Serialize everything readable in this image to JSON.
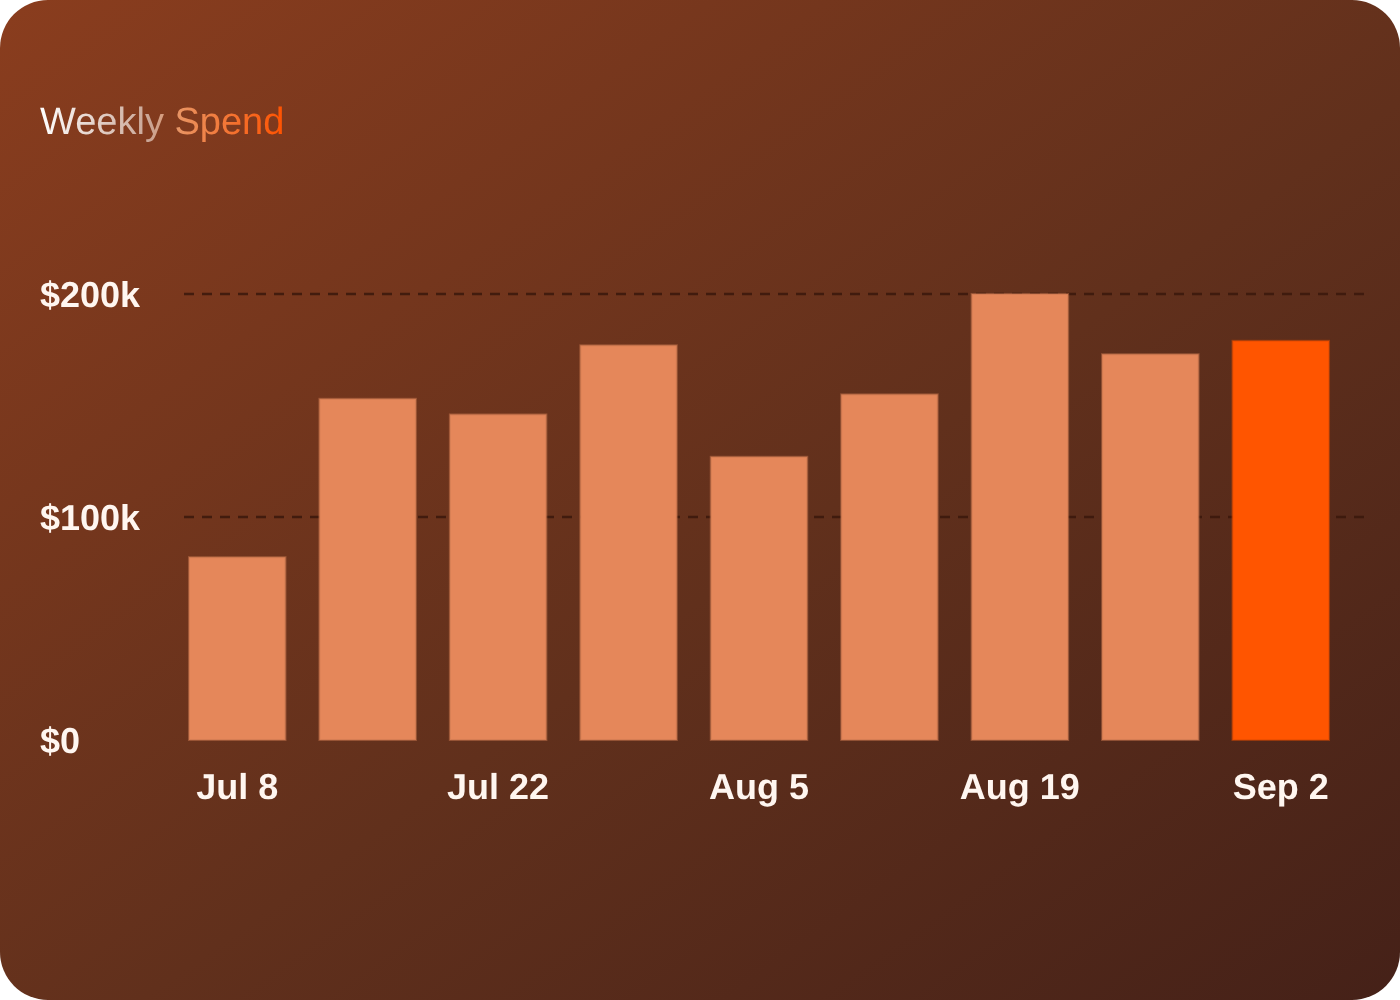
{
  "chart_data": {
    "type": "bar",
    "title": "Weekly Spend",
    "categories": [
      "Jul 8",
      null,
      "Jul 22",
      null,
      "Aug 5",
      null,
      "Aug 19",
      null,
      "Sep 2"
    ],
    "values": [
      82000,
      153000,
      146000,
      177000,
      127000,
      155000,
      200000,
      173000,
      179000
    ],
    "colors": [
      "#e5875a",
      "#e5875a",
      "#e5875a",
      "#e5875a",
      "#e5875a",
      "#e5875a",
      "#e5875a",
      "#e5875a",
      "#ff5500"
    ],
    "ylim": [
      0,
      200000
    ],
    "yticks": [
      {
        "value": 0,
        "label": "$0"
      },
      {
        "value": 100000,
        "label": "$100k"
      },
      {
        "value": 200000,
        "label": "$200k"
      }
    ],
    "ref_lines": [
      {
        "axis": "y",
        "value": 100000,
        "color": "#3a170c",
        "line_style": "dashed"
      },
      {
        "axis": "y",
        "value": 200000,
        "color": "#3a170c",
        "line_style": "dashed"
      }
    ]
  }
}
